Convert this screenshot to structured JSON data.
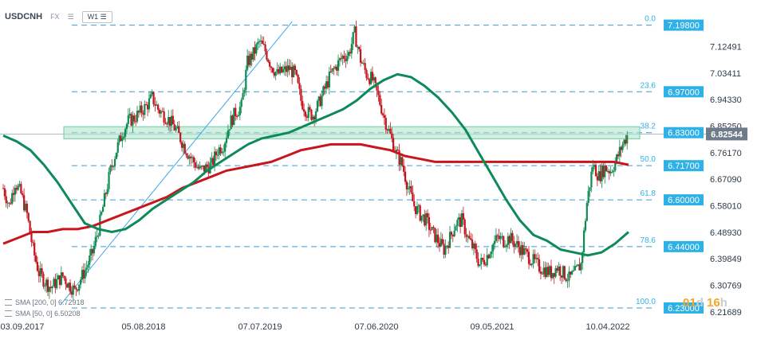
{
  "header": {
    "symbol": "USDCNH",
    "market": "FX",
    "timeframe": "W1"
  },
  "legend": {
    "sma200": "SMA [200, 0] 6.72918",
    "sma50": "SMA [50, 0] 6.50208"
  },
  "timer": {
    "days": "01",
    "d_unit": "d",
    "hours": "16",
    "h_unit": "h"
  },
  "colors": {
    "up_candle": "#0f8a50",
    "down_candle": "#c4141e",
    "sma50": "#0d8a59",
    "sma200": "#c9161d",
    "fib_line": "#3b9ad6",
    "fib_label": "#2eb1e6",
    "level_box": "#2eb1e6",
    "zone": "#a8e3c9",
    "last_price_box": "#6f7b88"
  },
  "chart_data": {
    "type": "candlestick",
    "title": "",
    "y_range": [
      6.2,
      7.235
    ],
    "y_ticks": [
      "7.12491",
      "7.03411",
      "6.94330",
      "6.85250",
      "6.76170",
      "6.67090",
      "6.58010",
      "6.48930",
      "6.39849",
      "6.30769",
      "6.21689"
    ],
    "x_ticks": [
      "03.09.2017",
      "05.08.2018",
      "07.07.2019",
      "07.06.2020",
      "09.05.2021",
      "10.04.2022"
    ],
    "fib_levels": [
      {
        "label": "0.0",
        "value": 7.198
      },
      {
        "label": "23.6",
        "value": 6.97
      },
      {
        "label": "38.2",
        "value": 6.83
      },
      {
        "label": "50.0",
        "value": 6.717
      },
      {
        "label": "61.8",
        "value": 6.6
      },
      {
        "label": "78.6",
        "value": 6.44
      },
      {
        "label": "100.0",
        "value": 6.23
      }
    ],
    "level_labels": [
      "7.19800",
      "6.97000",
      "6.83000",
      "6.71700",
      "6.60000",
      "6.44000",
      "6.23000"
    ],
    "last_price": "6.82544",
    "last_price_value": 6.82544,
    "resistance_zone": [
      6.82,
      6.845
    ],
    "trendline": [
      [
        0.09,
        6.24
      ],
      [
        0.455,
        7.21
      ]
    ],
    "close_series": [
      6.64,
      6.58,
      6.66,
      6.62,
      6.55,
      6.43,
      6.35,
      6.32,
      6.3,
      6.32,
      6.34,
      6.31,
      6.29,
      6.33,
      6.37,
      6.42,
      6.5,
      6.6,
      6.7,
      6.77,
      6.83,
      6.87,
      6.88,
      6.9,
      6.92,
      6.95,
      6.91,
      6.89,
      6.87,
      6.84,
      6.8,
      6.76,
      6.73,
      6.7,
      6.71,
      6.72,
      6.77,
      6.79,
      6.86,
      6.9,
      6.92,
      7.07,
      7.1,
      7.14,
      7.11,
      7.06,
      7.03,
      7.04,
      7.05,
      7.03,
      6.94,
      6.9,
      6.89,
      6.93,
      6.98,
      7.03,
      7.06,
      7.09,
      7.1,
      7.17,
      7.08,
      7.03,
      7.01,
      6.95,
      6.88,
      6.82,
      6.76,
      6.72,
      6.64,
      6.58,
      6.55,
      6.53,
      6.49,
      6.46,
      6.43,
      6.47,
      6.52,
      6.53,
      6.47,
      6.43,
      6.38,
      6.4,
      6.44,
      6.47,
      6.46,
      6.47,
      6.45,
      6.43,
      6.41,
      6.39,
      6.37,
      6.36,
      6.35,
      6.37,
      6.35,
      6.33,
      6.35,
      6.38,
      6.59,
      6.72,
      6.68,
      6.71,
      6.7,
      6.74,
      6.79,
      6.83
    ],
    "sma50_series": [
      6.82,
      6.8,
      6.77,
      6.72,
      6.66,
      6.59,
      6.52,
      6.5,
      6.49,
      6.5,
      6.53,
      6.57,
      6.6,
      6.63,
      6.66,
      6.7,
      6.73,
      6.76,
      6.79,
      6.81,
      6.82,
      6.83,
      6.85,
      6.87,
      6.89,
      6.91,
      6.94,
      6.98,
      7.01,
      7.03,
      7.02,
      6.99,
      6.95,
      6.9,
      6.84,
      6.76,
      6.68,
      6.6,
      6.53,
      6.48,
      6.46,
      6.43,
      6.42,
      6.41,
      6.42,
      6.45,
      6.49
    ],
    "sma200_series": [
      6.45,
      6.47,
      6.49,
      6.49,
      6.5,
      6.5,
      6.51,
      6.53,
      6.55,
      6.57,
      6.59,
      6.61,
      6.64,
      6.66,
      6.68,
      6.7,
      6.71,
      6.72,
      6.73,
      6.75,
      6.77,
      6.78,
      6.79,
      6.79,
      6.79,
      6.78,
      6.77,
      6.75,
      6.74,
      6.73,
      6.73,
      6.73,
      6.73,
      6.73,
      6.73,
      6.73,
      6.73,
      6.73,
      6.73,
      6.73,
      6.73,
      6.73,
      6.72
    ]
  }
}
